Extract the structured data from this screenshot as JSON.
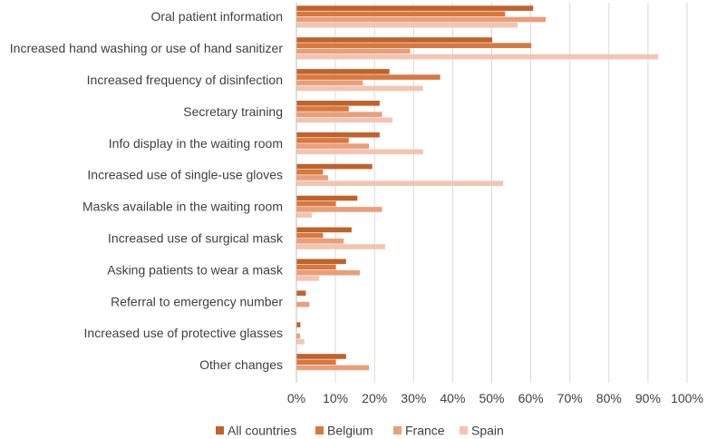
{
  "chart_data": {
    "type": "bar",
    "orientation": "horizontal",
    "categories": [
      "Oral patient information",
      "Increased hand washing or use of hand sanitizer",
      "Increased frequency of disinfection",
      "Secretary training",
      "Info display in the waiting room",
      "Increased use of single-use gloves",
      "Masks available in the waiting room",
      "Increased use of surgical mask",
      "Asking patients to wear a mask",
      "Referral to emergency number",
      "Increased use of protective glasses",
      "Other changes"
    ],
    "series": [
      {
        "name": "All countries",
        "color": "#c0622b",
        "values": [
          60.5,
          50,
          23.7,
          21.2,
          21.2,
          19.3,
          15.5,
          14,
          12.6,
          2.3,
          0.9,
          12.6
        ]
      },
      {
        "name": "Belgium",
        "color": "#d9783e",
        "values": [
          53.3,
          60,
          36.7,
          13.3,
          13.3,
          6.7,
          10,
          6.7,
          10,
          0,
          0,
          10
        ]
      },
      {
        "name": "France",
        "color": "#ea9e7a",
        "values": [
          63.7,
          29,
          16.9,
          21.8,
          18.5,
          8,
          21.8,
          12,
          16.1,
          3.2,
          0.8,
          18.5
        ]
      },
      {
        "name": "Spain",
        "color": "#f4c4b2",
        "values": [
          56.5,
          92.5,
          32.3,
          24.5,
          32.3,
          52.8,
          3.8,
          22.6,
          5.7,
          0,
          1.9,
          0
        ]
      }
    ],
    "x_ticks": [
      "0%",
      "10%",
      "20%",
      "30%",
      "40%",
      "50%",
      "60%",
      "70%",
      "80%",
      "90%",
      "100%"
    ],
    "xlim": [
      0,
      100
    ],
    "grid": "vertical",
    "legend": "bottom"
  }
}
